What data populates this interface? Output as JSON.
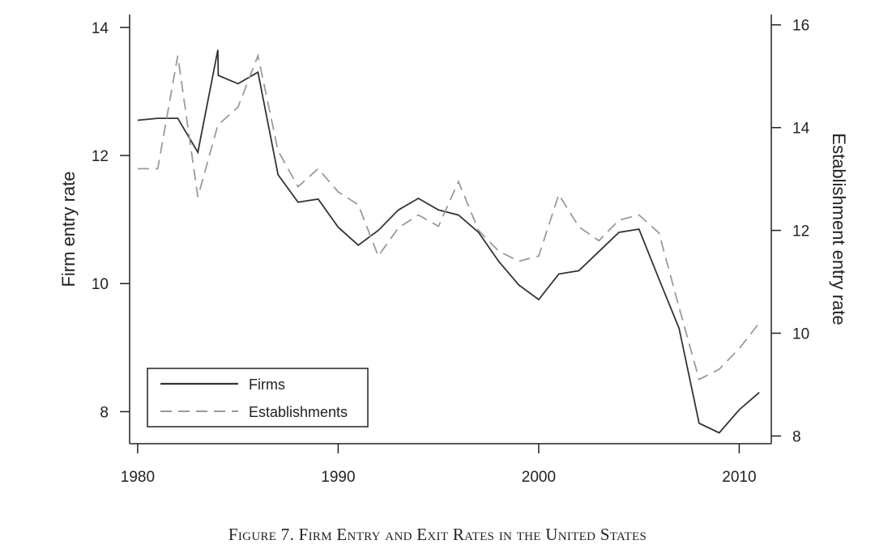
{
  "caption": "Figure 7. Firm Entry and Exit Rates in the United States",
  "colors": {
    "firms": "#333333",
    "establishments": "#9a9a9a",
    "axis": "#222222"
  },
  "chart_data": {
    "type": "line",
    "title": "",
    "xlabel": "",
    "ylabel": "Firm entry rate",
    "ylabel_right": "Establishment entry rate",
    "xlim": [
      1979.6,
      2011.6
    ],
    "ylim": [
      7.5,
      14.2
    ],
    "ylim_right": [
      7.85,
      16.2
    ],
    "x_ticks": [
      1980,
      1990,
      2000,
      2010
    ],
    "y_ticks": [
      8,
      10,
      12,
      14
    ],
    "y_ticks_right": [
      8,
      10,
      12,
      14,
      16
    ],
    "grid": false,
    "legend_position": "bottom-left",
    "series": [
      {
        "name": "Firms",
        "axis": "left",
        "style": "solid",
        "x": [
          1980,
          1981,
          1982,
          1983,
          1984,
          1984.02,
          1985,
          1986,
          1987,
          1988,
          1989,
          1990,
          1991,
          1992,
          1993,
          1994,
          1995,
          1996,
          1997,
          1998,
          1999,
          2000,
          2001,
          2002,
          2003,
          2004,
          2005,
          2006,
          2007,
          2008,
          2009,
          2010,
          2011
        ],
        "values": [
          12.55,
          12.58,
          12.58,
          12.05,
          13.65,
          13.25,
          13.12,
          13.3,
          11.7,
          11.27,
          11.32,
          10.88,
          10.6,
          10.83,
          11.15,
          11.33,
          11.15,
          11.07,
          10.8,
          10.35,
          9.98,
          9.75,
          10.15,
          10.2,
          10.5,
          10.8,
          10.85,
          10.07,
          9.3,
          7.82,
          7.67,
          8.03,
          8.3
        ]
      },
      {
        "name": "Establishments",
        "axis": "right",
        "style": "dashed",
        "x": [
          1980,
          1981,
          1982,
          1983,
          1984,
          1985,
          1986,
          1987,
          1988,
          1989,
          1990,
          1991,
          1992,
          1993,
          1994,
          1995,
          1996,
          1997,
          1998,
          1999,
          2000,
          2001,
          2002,
          2003,
          2004,
          2005,
          2006,
          2007,
          2008,
          2009,
          2010,
          2011
        ],
        "values": [
          13.2,
          13.2,
          15.4,
          12.65,
          14.05,
          14.4,
          15.4,
          13.55,
          12.85,
          13.2,
          12.75,
          12.5,
          11.5,
          12.05,
          12.3,
          12.08,
          12.95,
          12.0,
          11.6,
          11.4,
          11.5,
          12.7,
          12.07,
          11.8,
          12.2,
          12.3,
          11.95,
          10.5,
          9.1,
          9.3,
          9.7,
          10.2
        ]
      }
    ]
  }
}
